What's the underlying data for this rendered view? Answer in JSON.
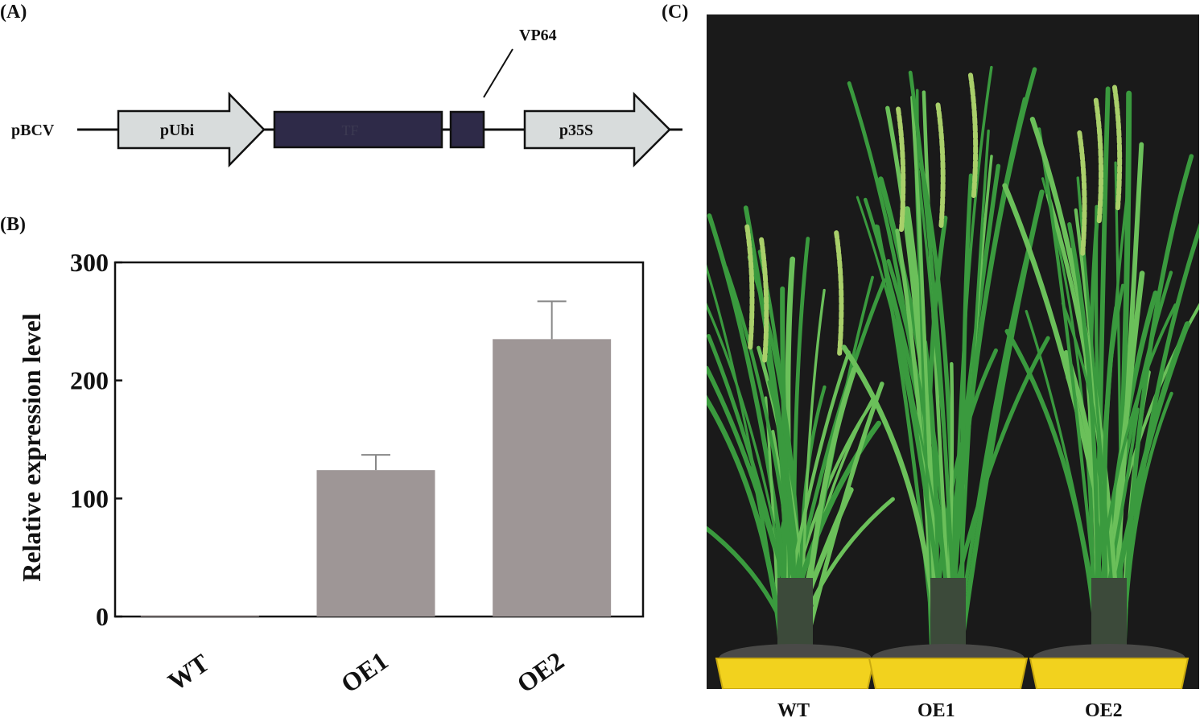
{
  "panels": {
    "a": {
      "label": "(A)",
      "construct_name": "pBCV",
      "elements": [
        {
          "name": "pUbi",
          "kind": "promoter-arrow",
          "fill": "#d8dcdc"
        },
        {
          "name": "TF",
          "kind": "box",
          "fill": "#2e2a48"
        },
        {
          "name": "",
          "kind": "box",
          "fill": "#2e2a48"
        },
        {
          "name": "p35S",
          "kind": "promoter-arrow",
          "fill": "#d8dcdc"
        }
      ],
      "callout": "VP64"
    },
    "b": {
      "label": "(B)"
    },
    "c": {
      "label": "(C)",
      "captions": [
        "WT",
        "OE1",
        "OE2"
      ],
      "colors": {
        "background": "#1a1a1a",
        "leaf": "#3a9a3e",
        "leaf_light": "#6bc05a",
        "pot": "#f2d21e",
        "soil": "#4a4a48"
      }
    }
  },
  "chart_data": {
    "type": "bar",
    "categories": [
      "WT",
      "OE1",
      "OE2"
    ],
    "values": [
      1,
      124,
      235
    ],
    "errors": [
      0,
      13,
      32
    ],
    "ylabel": "Relative expression level",
    "xlabel": "",
    "ylim": [
      0,
      300
    ],
    "yticks": [
      0,
      100,
      200,
      300
    ],
    "bar_color": "#9e9696",
    "grid": false
  }
}
